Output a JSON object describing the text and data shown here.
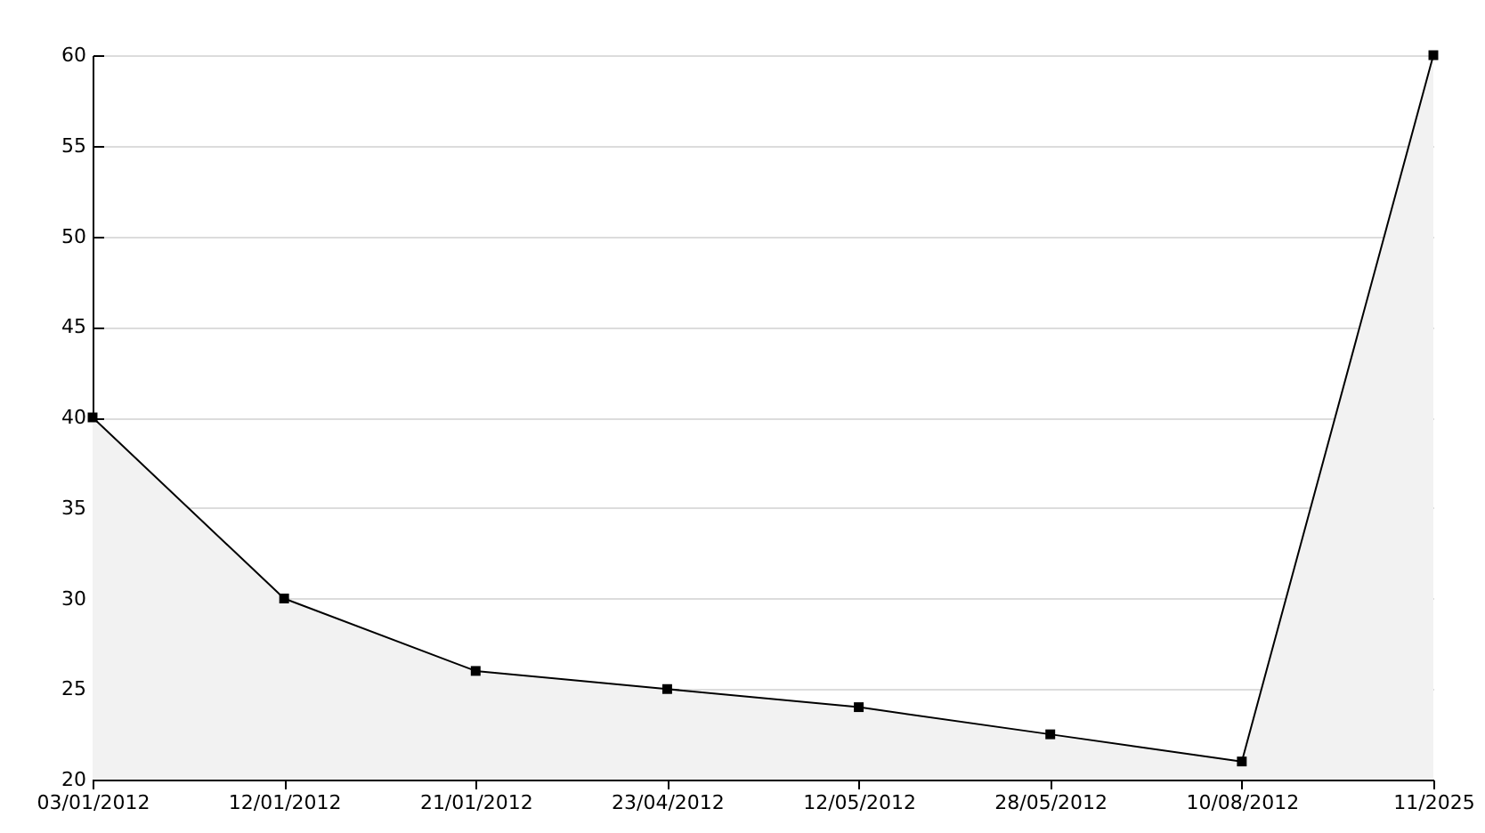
{
  "chart_data": {
    "type": "area",
    "categories": [
      "03/01/2012",
      "12/01/2012",
      "21/01/2012",
      "23/04/2012",
      "12/05/2012",
      "28/05/2012",
      "10/08/2012",
      "11/2025"
    ],
    "series": [
      {
        "color": "#000000",
        "values": [
          40,
          30,
          26,
          25,
          24,
          22.5,
          21,
          60
        ]
      }
    ],
    "ylim": [
      20,
      60
    ],
    "yticks": [
      20,
      25,
      30,
      35,
      40,
      45,
      50,
      55,
      60
    ],
    "grid": "y",
    "marker": "square"
  }
}
